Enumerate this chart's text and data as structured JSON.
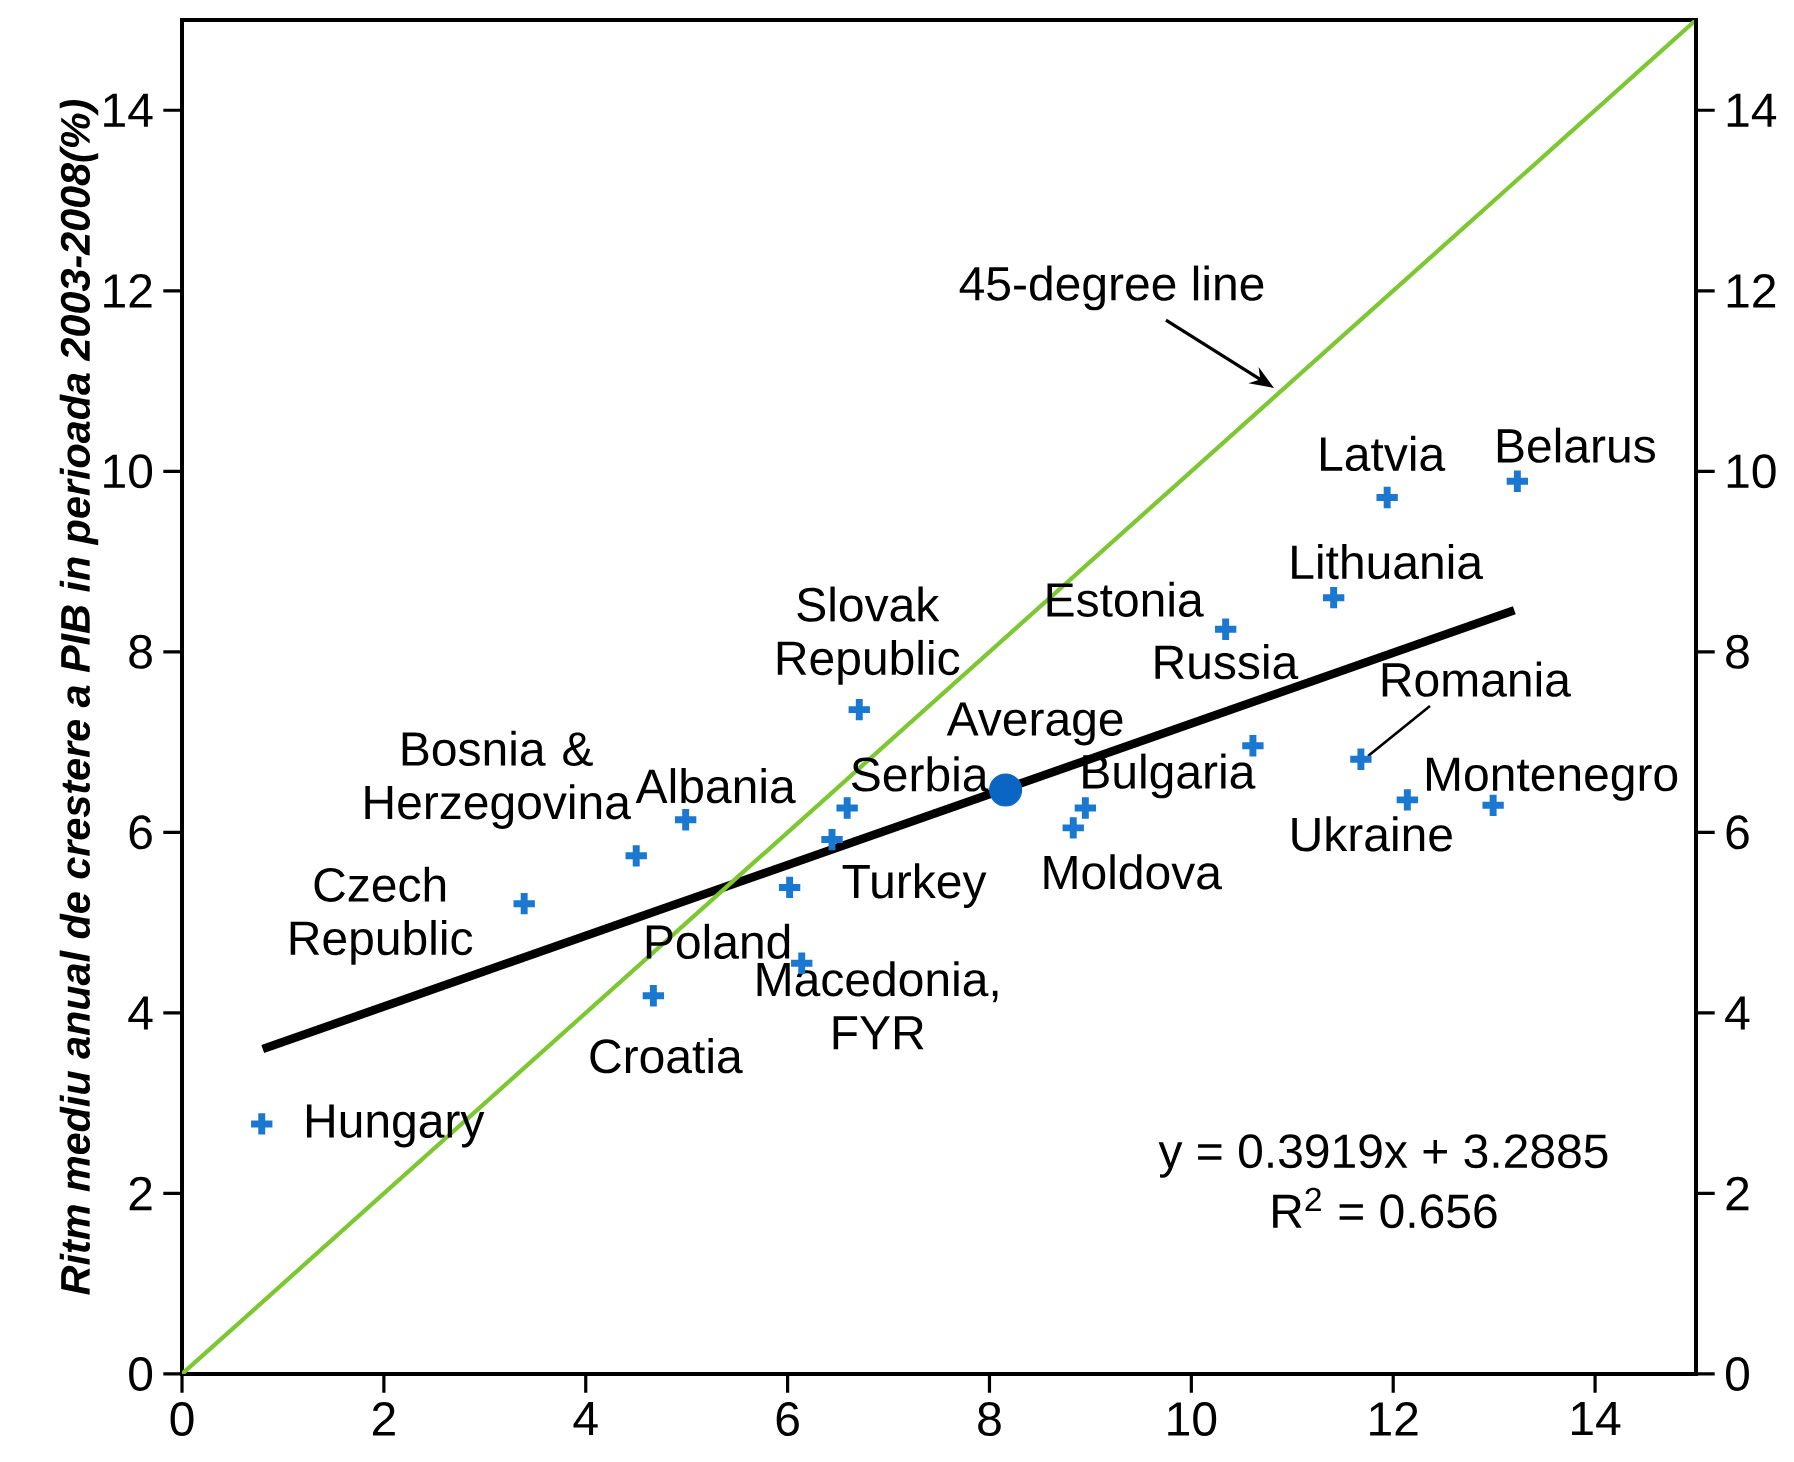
{
  "chart_data": {
    "type": "scatter",
    "ylabel": "Ritm mediu anual de crestere a PIB in perioada 2003-2008(%)",
    "xlim": [
      0,
      15
    ],
    "ylim": [
      0,
      15
    ],
    "y2lim": [
      0,
      15
    ],
    "xticks": [
      0,
      2,
      4,
      6,
      8,
      10,
      12,
      14
    ],
    "yticks": [
      0,
      2,
      4,
      6,
      8,
      10,
      12,
      14
    ],
    "y2ticks": [
      0,
      2,
      4,
      6,
      8,
      10,
      12,
      14
    ],
    "grid": false,
    "series": [
      {
        "type": "scatter",
        "color": "#1a78d0",
        "marker": "cross",
        "x": [
          0.79,
          3.39,
          4.5,
          4.99,
          4.67,
          6.02,
          6.44,
          6.59,
          6.71,
          6.14,
          8.83,
          8.95,
          10.34,
          10.61,
          11.41,
          11.68,
          12.14,
          12.99,
          11.94,
          13.23
        ],
        "values": [
          2.77,
          5.21,
          5.74,
          6.14,
          4.19,
          5.39,
          5.92,
          6.27,
          7.36,
          4.55,
          6.05,
          6.27,
          8.25,
          6.96,
          8.6,
          6.81,
          6.36,
          6.3,
          9.71,
          9.89
        ],
        "value_labels": [
          "Hungary",
          "Czech Republic",
          "Bosnia & Herzegovina",
          "Albania",
          "Croatia",
          "Poland",
          "Turkey",
          "Serbia",
          "Slovak Republic",
          "Macedonia, FYR",
          "Moldova",
          "Bulgaria",
          "Estonia",
          "Russia",
          "Lithuania",
          "Romania",
          "Ukraine",
          "Montenegro",
          "Latvia",
          "Belarus"
        ]
      },
      {
        "type": "scatter",
        "name": "Average",
        "color": "#0b66c3",
        "marker": "circle",
        "x": [
          8.16
        ],
        "values": [
          6.47
        ]
      },
      {
        "type": "line",
        "color": "#000000",
        "marker": "none",
        "x": [
          0.8,
          13.2
        ],
        "values": [
          3.6,
          8.46
        ]
      },
      {
        "type": "line",
        "name": "45-degree line",
        "color": "#7dc832",
        "marker": "none",
        "x": [
          0,
          15
        ],
        "values": [
          0,
          15
        ]
      }
    ],
    "annotations": [
      "y = 0.3919x + 3.2885",
      "R$^{2}$ = 0.656"
    ]
  }
}
